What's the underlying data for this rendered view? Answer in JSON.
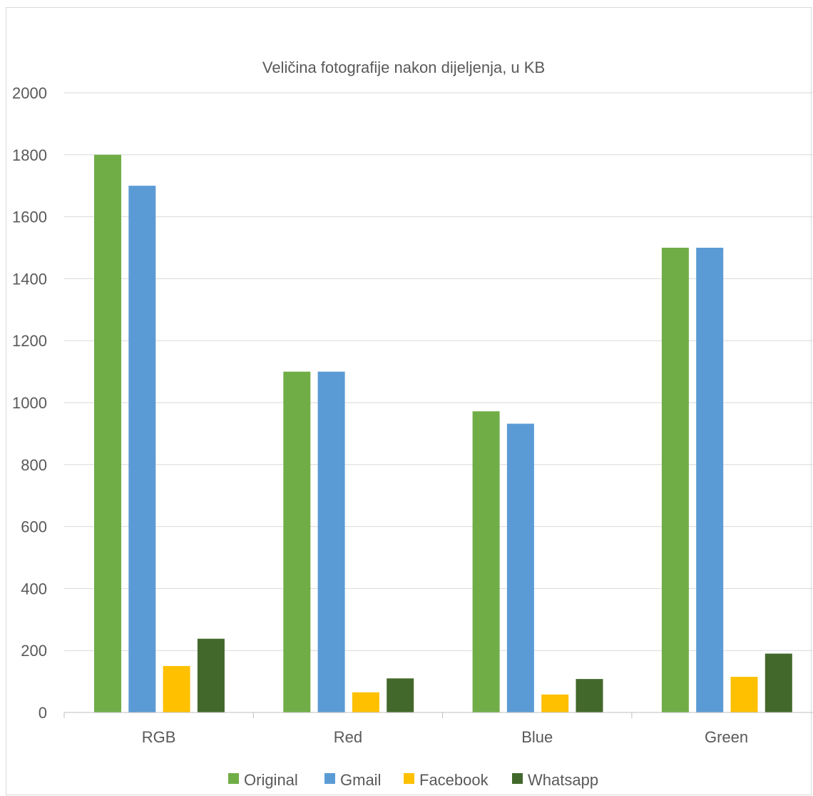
{
  "chart_data": {
    "type": "bar",
    "title": "Veličina fotografije nakon dijeljenja, u KB",
    "xlabel": "",
    "ylabel": "",
    "categories": [
      "RGB",
      "Red",
      "Blue",
      "Green"
    ],
    "series": [
      {
        "name": "Original",
        "color": "#70ad47",
        "values": [
          1800,
          1100,
          972,
          1500
        ]
      },
      {
        "name": "Gmail",
        "color": "#5b9bd5",
        "values": [
          1700,
          1100,
          932,
          1500
        ]
      },
      {
        "name": "Facebook",
        "color": "#ffc000",
        "values": [
          150,
          65,
          58,
          115
        ]
      },
      {
        "name": "Whatsapp",
        "color": "#43682b",
        "values": [
          238,
          110,
          108,
          190
        ]
      }
    ],
    "ylim": [
      0,
      2000
    ],
    "yticks": [
      0,
      200,
      400,
      600,
      800,
      1000,
      1200,
      1400,
      1600,
      1800,
      2000
    ],
    "grid": true,
    "legend": "bottom"
  }
}
